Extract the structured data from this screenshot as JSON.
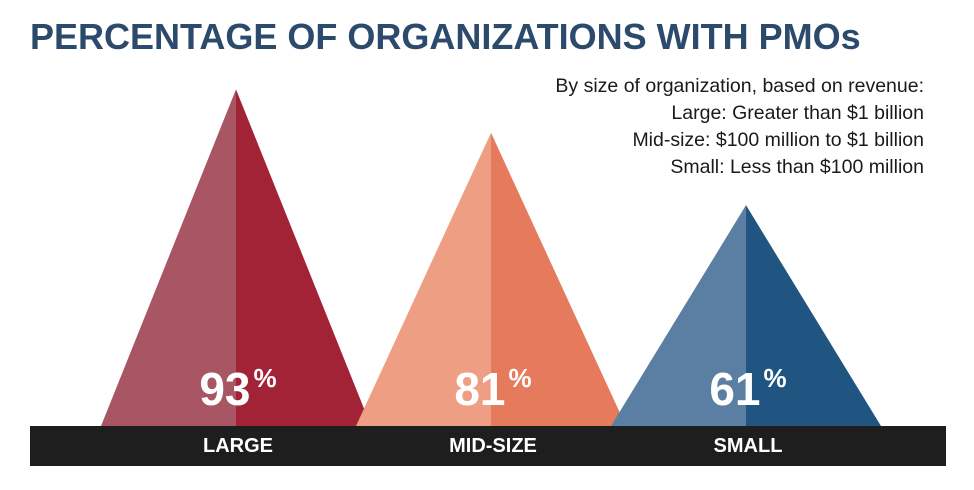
{
  "title": "PERCENTAGE OF ORGANIZATIONS WITH PMOs",
  "notes": [
    "By size of organization, based on revenue:",
    "Large: Greater than $1 billion",
    "Mid-size: $100 million to $1 billion",
    "Small: Less than $100 million"
  ],
  "chart_data": {
    "type": "bar",
    "title": "PERCENTAGE OF ORGANIZATIONS WITH PMOs",
    "categories": [
      "LARGE",
      "MID-SIZE",
      "SMALL"
    ],
    "values": [
      93,
      81,
      61
    ],
    "value_suffix": "%",
    "ylim": [
      0,
      100
    ],
    "grid": false,
    "legend": "none",
    "colors": [
      {
        "light": "#a85564",
        "dark": "#a22335"
      },
      {
        "light": "#ee9f83",
        "dark": "#e57b5c"
      },
      {
        "light": "#5a7fa2",
        "dark": "#1f5580"
      }
    ],
    "baseline_color": "#1e1e1e",
    "label_color": "#ffffff"
  }
}
